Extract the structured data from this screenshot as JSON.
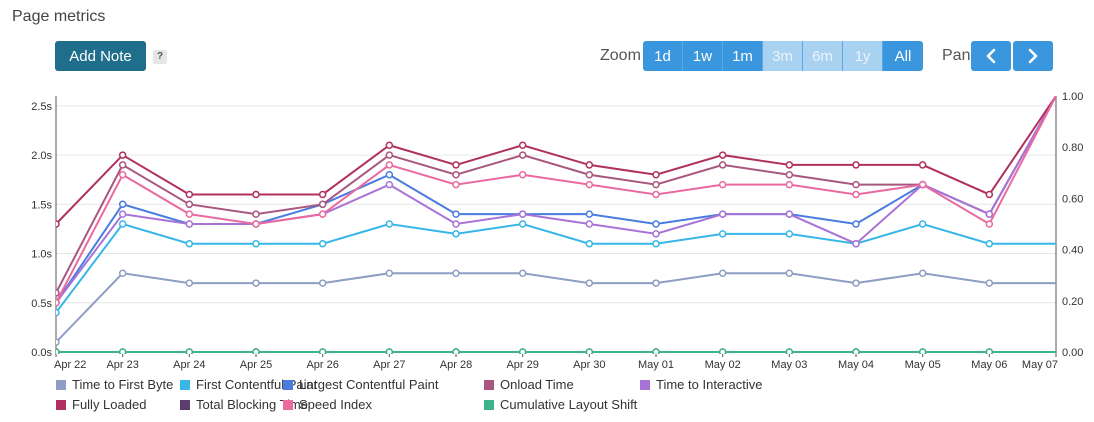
{
  "header": {
    "title": "Page metrics",
    "add_note_label": "Add Note",
    "help_label": "?",
    "zoom_label": "Zoom",
    "zoom_options": [
      {
        "label": "1d",
        "enabled": true
      },
      {
        "label": "1w",
        "enabled": true
      },
      {
        "label": "1m",
        "enabled": true
      },
      {
        "label": "3m",
        "enabled": false
      },
      {
        "label": "6m",
        "enabled": false
      },
      {
        "label": "1y",
        "enabled": false
      },
      {
        "label": "All",
        "enabled": true
      }
    ],
    "pan_label": "Pan",
    "pan_prev_icon": "chevron-left-icon",
    "pan_next_icon": "chevron-right-icon"
  },
  "chart_data": {
    "type": "line",
    "x": [
      "Apr 22",
      "Apr 23",
      "Apr 24",
      "Apr 25",
      "Apr 26",
      "Apr 27",
      "Apr 28",
      "Apr 29",
      "Apr 30",
      "May 01",
      "May 02",
      "May 03",
      "May 04",
      "May 05",
      "May 06",
      "May 07"
    ],
    "y_left_ticks": [
      "0.0s",
      "0.5s",
      "1.0s",
      "1.5s",
      "2.0s",
      "2.5s"
    ],
    "y_left_range": [
      0,
      2.6
    ],
    "y_right_ticks": [
      "0.00",
      "0.20",
      "0.40",
      "0.60",
      "0.80",
      "1.00"
    ],
    "y_right_range": [
      0,
      1
    ],
    "grid": "horizontal",
    "legend_position": "bottom",
    "series": [
      {
        "name": "Time to First Byte",
        "color": "#8e9dc4",
        "axis": "left",
        "values": [
          0.1,
          0.8,
          0.7,
          0.7,
          0.7,
          0.8,
          0.8,
          0.8,
          0.7,
          0.7,
          0.8,
          0.8,
          0.7,
          0.8,
          0.7,
          0.7
        ],
        "markers": [
          true,
          true,
          true,
          true,
          true,
          true,
          true,
          true,
          true,
          true,
          true,
          true,
          true,
          true,
          true,
          false
        ]
      },
      {
        "name": "First Contentful Paint",
        "color": "#38b6e6",
        "axis": "left",
        "values": [
          0.4,
          1.3,
          1.1,
          1.1,
          1.1,
          1.3,
          1.2,
          1.3,
          1.1,
          1.1,
          1.2,
          1.2,
          1.1,
          1.3,
          1.1,
          1.1
        ],
        "markers": [
          true,
          true,
          true,
          true,
          true,
          true,
          true,
          true,
          true,
          true,
          true,
          true,
          true,
          true,
          true,
          false
        ]
      },
      {
        "name": "Largest Contentful Paint",
        "color": "#4a7ce0",
        "axis": "left",
        "values": [
          0.5,
          1.5,
          1.3,
          1.3,
          1.5,
          1.8,
          1.4,
          1.4,
          1.4,
          1.3,
          1.4,
          1.4,
          1.3,
          1.7,
          1.4,
          2.6
        ],
        "markers": [
          true,
          true,
          true,
          true,
          true,
          true,
          true,
          true,
          true,
          true,
          true,
          true,
          true,
          true,
          true,
          false
        ]
      },
      {
        "name": "Onload Time",
        "color": "#a8577e",
        "axis": "left",
        "values": [
          0.6,
          1.9,
          1.5,
          1.4,
          1.5,
          2.0,
          1.8,
          2.0,
          1.8,
          1.7,
          1.9,
          1.8,
          1.7,
          1.7,
          1.4,
          2.6
        ],
        "markers": [
          true,
          true,
          true,
          true,
          true,
          true,
          true,
          true,
          true,
          true,
          true,
          true,
          true,
          true,
          true,
          false
        ]
      },
      {
        "name": "Time to Interactive",
        "color": "#a873d6",
        "axis": "left",
        "values": [
          0.5,
          1.4,
          1.3,
          1.3,
          1.4,
          1.7,
          1.3,
          1.4,
          1.3,
          1.2,
          1.4,
          1.4,
          1.1,
          1.7,
          1.4,
          2.6
        ],
        "markers": [
          true,
          true,
          true,
          true,
          true,
          true,
          true,
          true,
          true,
          true,
          true,
          true,
          true,
          true,
          true,
          false
        ]
      },
      {
        "name": "Fully Loaded",
        "color": "#b03060",
        "axis": "left",
        "values": [
          1.3,
          2.0,
          1.6,
          1.6,
          1.6,
          2.1,
          1.9,
          2.1,
          1.9,
          1.8,
          2.0,
          1.9,
          1.9,
          1.9,
          1.6,
          2.6
        ],
        "markers": [
          true,
          true,
          true,
          true,
          true,
          true,
          true,
          true,
          true,
          true,
          true,
          true,
          true,
          true,
          true,
          false
        ]
      },
      {
        "name": "Total Blocking Time",
        "color": "#5c3d6e",
        "axis": "left",
        "values": [
          0.0,
          0.0,
          0.0,
          0.0,
          0.0,
          0.0,
          0.0,
          0.0,
          0.0,
          0.0,
          0.0,
          0.0,
          0.0,
          0.0,
          0.0,
          0.0
        ],
        "markers": [
          true,
          true,
          true,
          true,
          true,
          true,
          true,
          true,
          true,
          true,
          true,
          true,
          true,
          true,
          true,
          false
        ]
      },
      {
        "name": "Speed Index",
        "color": "#ea6aa0",
        "axis": "left",
        "values": [
          0.5,
          1.8,
          1.4,
          1.3,
          1.4,
          1.9,
          1.7,
          1.8,
          1.7,
          1.6,
          1.7,
          1.7,
          1.6,
          1.7,
          1.3,
          2.6
        ],
        "markers": [
          true,
          true,
          true,
          true,
          true,
          true,
          true,
          true,
          true,
          true,
          true,
          true,
          true,
          true,
          true,
          false
        ]
      },
      {
        "name": "Cumulative Layout Shift",
        "color": "#3db38a",
        "axis": "right",
        "values": [
          0.0,
          0.0,
          0.0,
          0.0,
          0.0,
          0.0,
          0.0,
          0.0,
          0.0,
          0.0,
          0.0,
          0.0,
          0.0,
          0.0,
          0.0,
          0.0
        ],
        "markers": [
          true,
          true,
          true,
          true,
          true,
          true,
          true,
          true,
          true,
          true,
          true,
          true,
          true,
          true,
          true,
          false
        ]
      }
    ]
  }
}
